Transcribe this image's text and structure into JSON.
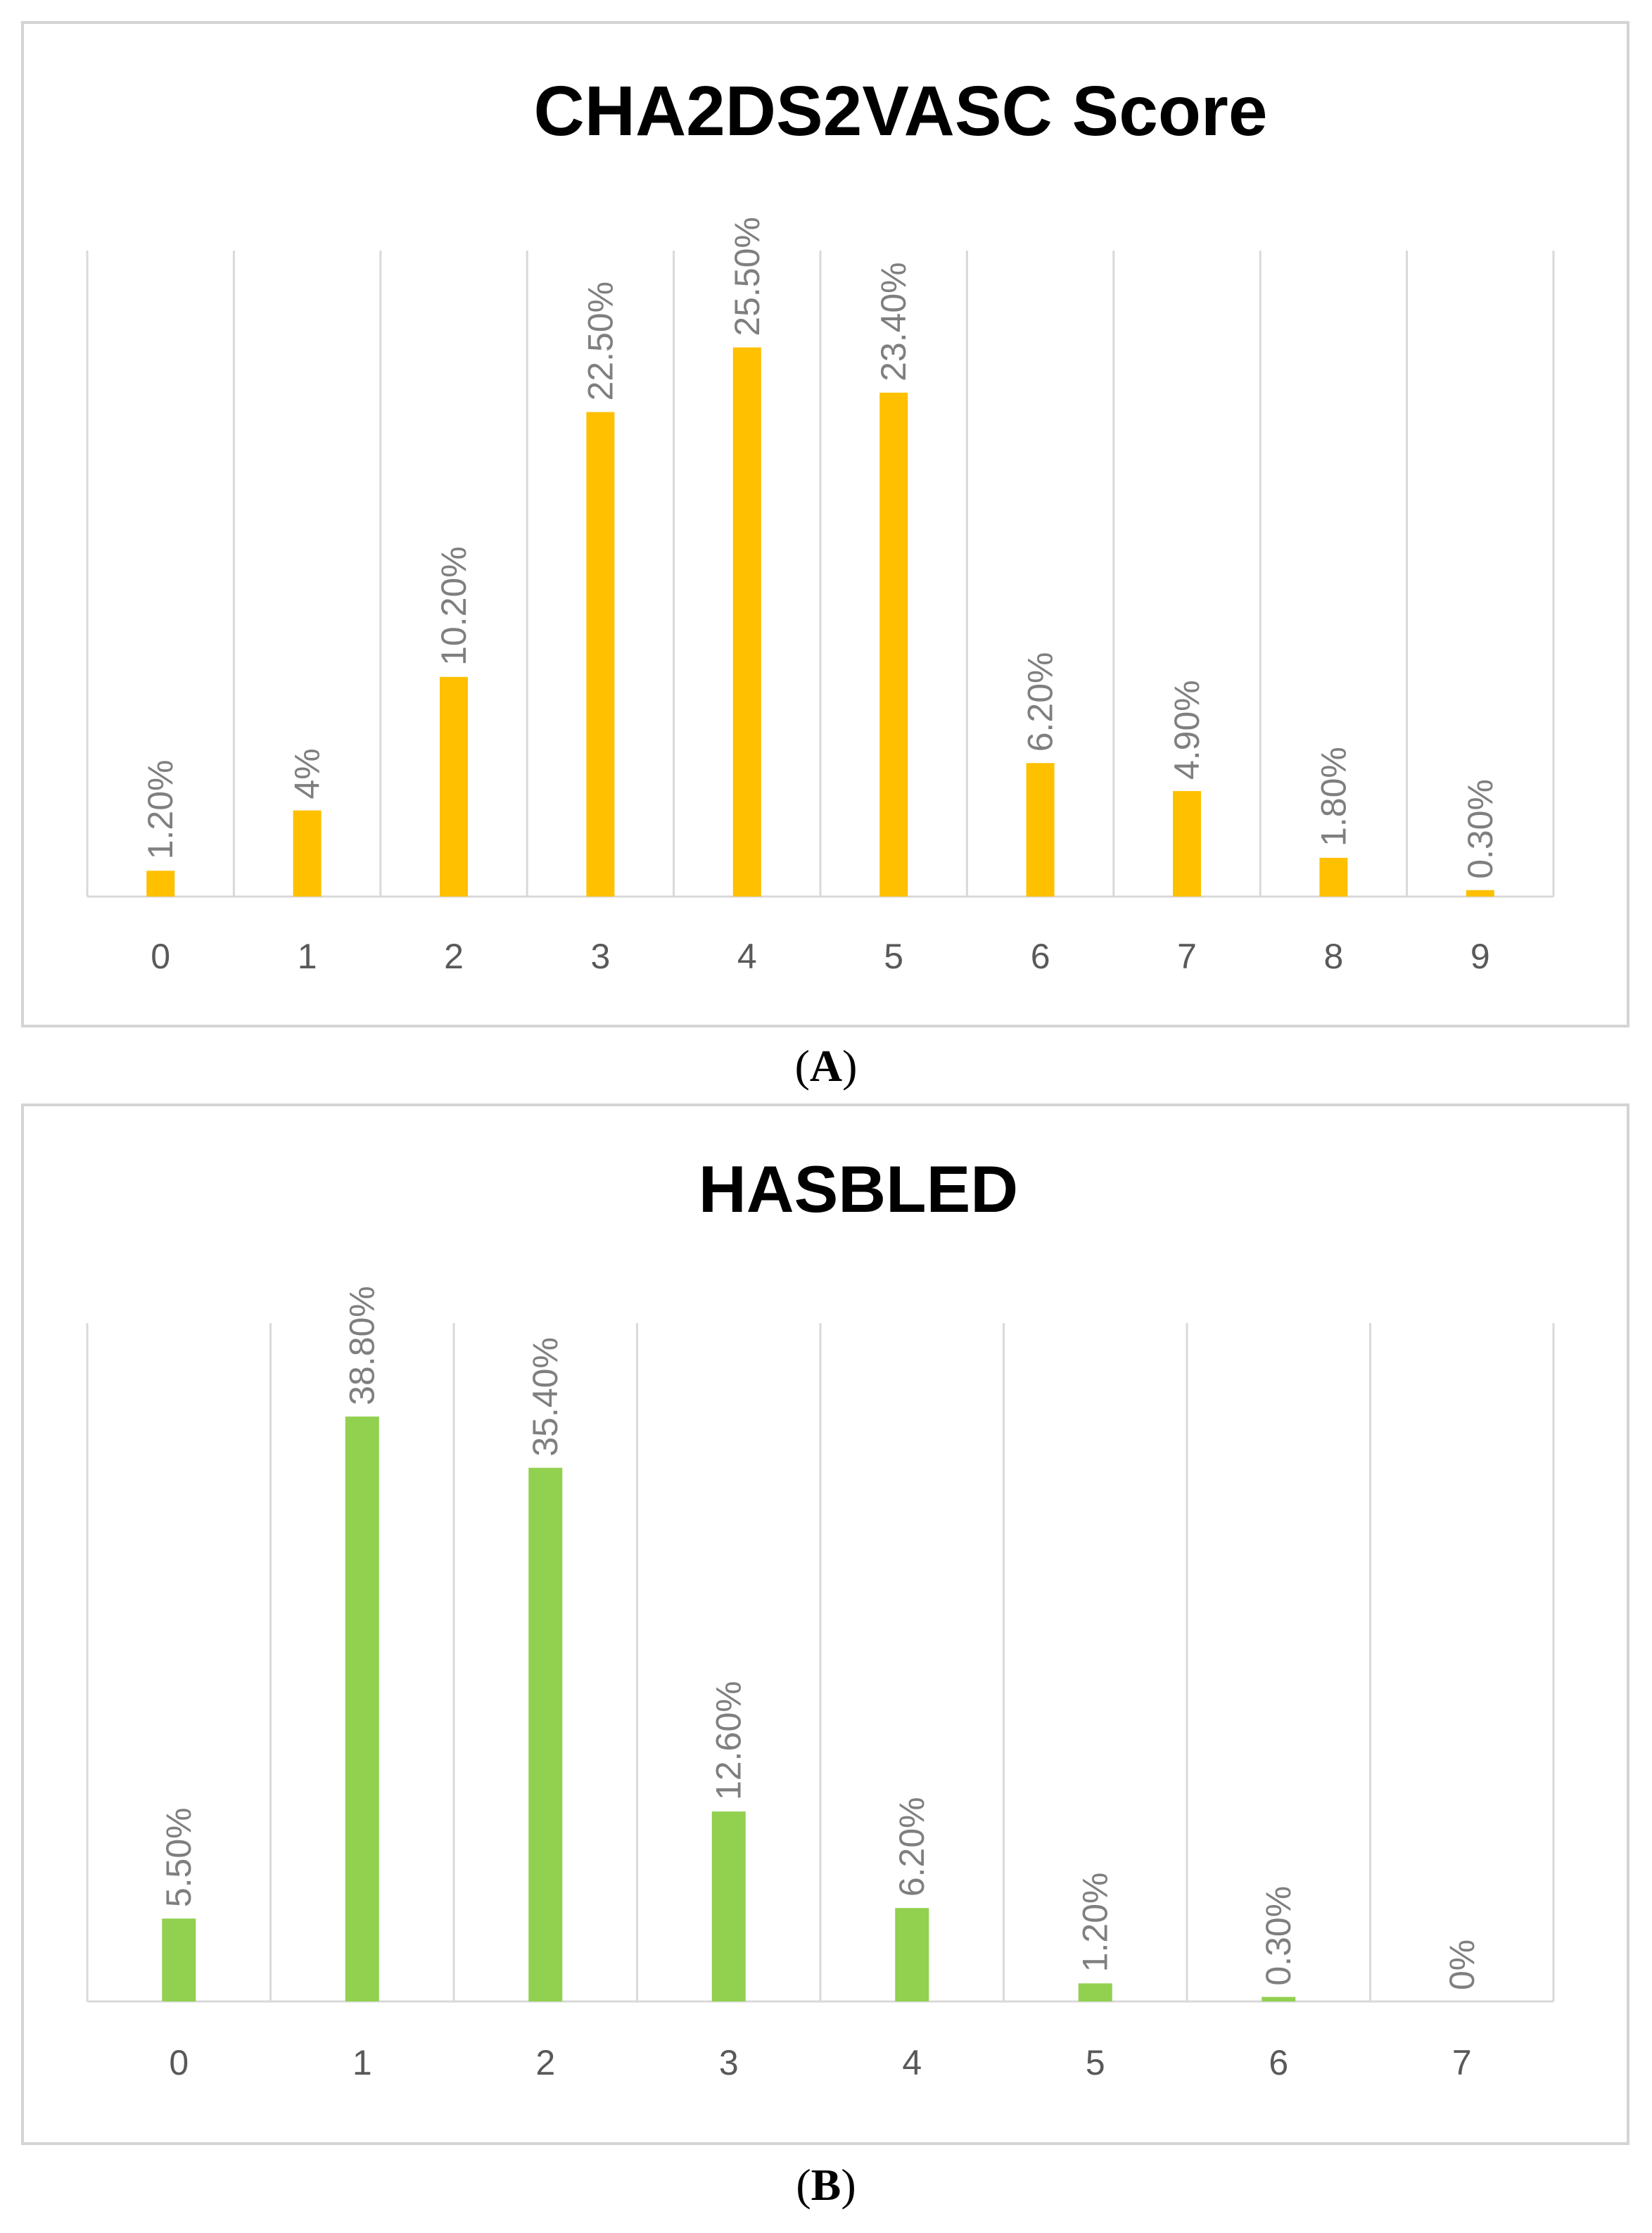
{
  "chart_data": [
    {
      "type": "bar",
      "title": "CHA2DS2VASC Score",
      "categories": [
        "0",
        "1",
        "2",
        "3",
        "4",
        "5",
        "6",
        "7",
        "8",
        "9"
      ],
      "values": [
        1.2,
        4.0,
        10.2,
        22.5,
        25.5,
        23.4,
        6.2,
        4.9,
        1.8,
        0.3
      ],
      "data_labels": [
        "1.20%",
        "4%",
        "10.20%",
        "22.50%",
        "25.50%",
        "23.40%",
        "6.20%",
        "4.90%",
        "1.80%",
        "0.30%"
      ],
      "unit": "%",
      "color": "#FFC000",
      "ylim": [
        0,
        30
      ],
      "grid": "vertical",
      "caption_open": "(",
      "caption_letter": "A",
      "caption_close": ")"
    },
    {
      "type": "bar",
      "title": "HASBLED",
      "categories": [
        "0",
        "1",
        "2",
        "3",
        "4",
        "5",
        "6",
        "7"
      ],
      "values": [
        5.5,
        38.8,
        35.4,
        12.6,
        6.2,
        1.2,
        0.3,
        0
      ],
      "data_labels": [
        "5.50%",
        "38.80%",
        "35.40%",
        "12.60%",
        "6.20%",
        "1.20%",
        "0.30%",
        "0%"
      ],
      "unit": "%",
      "color": "#92D050",
      "ylim": [
        0,
        45
      ],
      "grid": "vertical",
      "caption_open": "(",
      "caption_letter": "B",
      "caption_close": ")"
    }
  ]
}
